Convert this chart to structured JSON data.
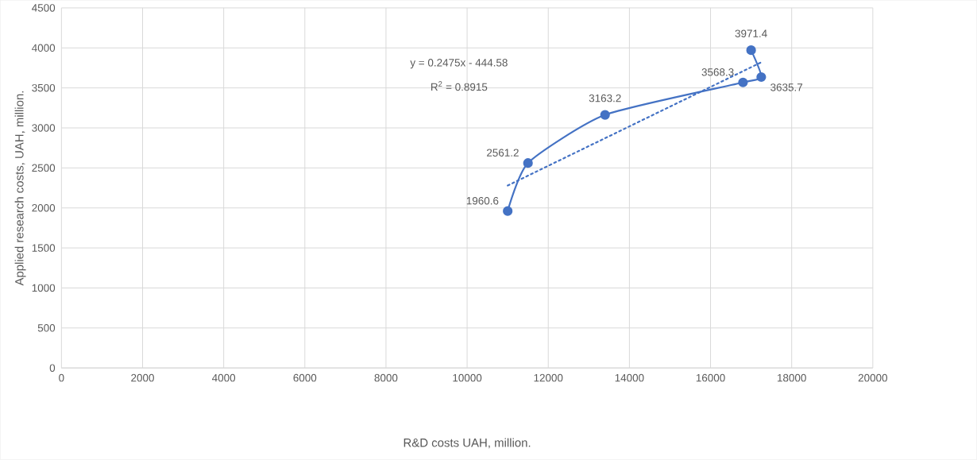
{
  "chart_data": {
    "type": "line",
    "xlabel": "R&D costs UAH, million.",
    "ylabel": "Applied research costs, UAH, million.",
    "series": [
      {
        "color": "#4472c4",
        "x": [
          11000,
          11500,
          13400,
          16800,
          17250,
          17000
        ],
        "values": [
          1960.6,
          2561.2,
          3163.2,
          3568.3,
          3635.7,
          3971.4
        ],
        "data_labels": true,
        "marker": "circle",
        "line_style": "solid"
      },
      {
        "color": "#4472c4",
        "x": [
          11000,
          17250
        ],
        "values": [
          2280,
          3820
        ],
        "marker": "none",
        "line_style": "dotted"
      }
    ],
    "annotations": [
      "y = 0.2475x - 444.58",
      "R$^{2}$ = 0.8915"
    ],
    "xlim": [
      0,
      20000
    ],
    "ylim": [
      0,
      4500
    ],
    "xticks": [
      0,
      2000,
      4000,
      6000,
      8000,
      10000,
      12000,
      14000,
      16000,
      18000,
      20000
    ],
    "yticks": [
      0,
      500,
      1000,
      1500,
      2000,
      2500,
      3000,
      3500,
      4000,
      4500
    ],
    "grid": true
  }
}
